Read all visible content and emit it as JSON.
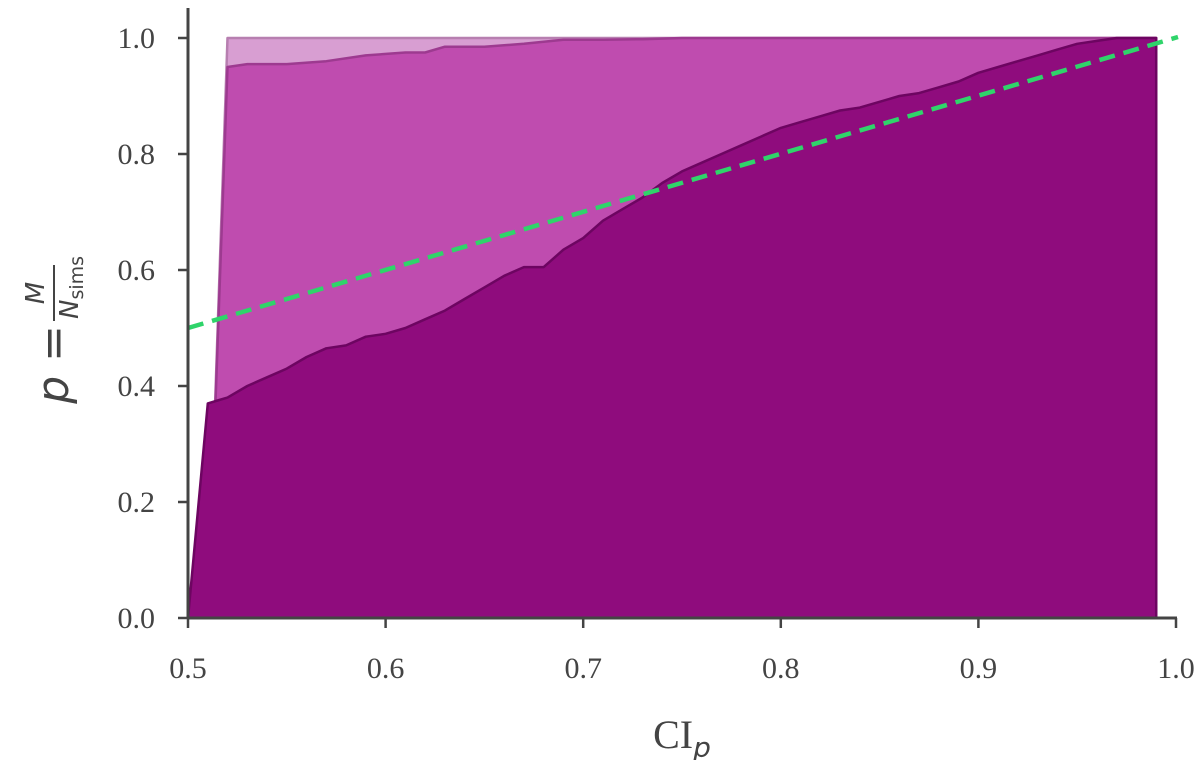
{
  "chart_data": {
    "type": "area",
    "xlabel_main": "CI",
    "xlabel_sub": "p",
    "ylabel_lhs": "p = ",
    "ylabel_num": "M",
    "ylabel_den_main": "N",
    "ylabel_den_sub": "sims",
    "xlim": [
      0.5,
      1.0
    ],
    "ylim": [
      0.0,
      1.0
    ],
    "x_ticks": [
      "0.5",
      "0.6",
      "0.7",
      "0.8",
      "0.9",
      "1.0"
    ],
    "y_ticks": [
      "0.0",
      "0.2",
      "0.4",
      "0.6",
      "0.8",
      "1.0"
    ],
    "grid": false,
    "colors": {
      "series_light": "#d89ed2",
      "series_medium": "#bf4caf",
      "series_dark": "#8f0c7d",
      "reference_line": "#2fd46a",
      "axis": "#444444"
    },
    "series": [
      {
        "x": [
          0.51,
          0.52,
          0.99
        ],
        "y": [
          0.0,
          1.0,
          1.0
        ]
      },
      {
        "x": [
          0.51,
          0.52,
          0.53,
          0.55,
          0.57,
          0.59,
          0.61,
          0.62,
          0.63,
          0.65,
          0.67,
          0.69,
          0.71,
          0.73,
          0.75,
          0.77,
          0.99
        ],
        "y": [
          0.0,
          0.95,
          0.955,
          0.955,
          0.96,
          0.97,
          0.975,
          0.975,
          0.985,
          0.985,
          0.99,
          0.997,
          0.997,
          0.998,
          1.0,
          1.0,
          1.0
        ]
      },
      {
        "x": [
          0.5,
          0.51,
          0.515,
          0.52,
          0.53,
          0.54,
          0.55,
          0.56,
          0.57,
          0.58,
          0.59,
          0.6,
          0.61,
          0.62,
          0.63,
          0.64,
          0.65,
          0.66,
          0.67,
          0.68,
          0.69,
          0.7,
          0.71,
          0.72,
          0.73,
          0.74,
          0.75,
          0.76,
          0.77,
          0.78,
          0.79,
          0.8,
          0.81,
          0.82,
          0.83,
          0.84,
          0.85,
          0.86,
          0.87,
          0.88,
          0.89,
          0.9,
          0.91,
          0.92,
          0.93,
          0.94,
          0.95,
          0.96,
          0.97,
          0.98,
          0.99
        ],
        "y": [
          0.0,
          0.37,
          0.375,
          0.38,
          0.4,
          0.415,
          0.43,
          0.45,
          0.465,
          0.47,
          0.485,
          0.49,
          0.5,
          0.515,
          0.53,
          0.55,
          0.57,
          0.59,
          0.605,
          0.605,
          0.635,
          0.655,
          0.685,
          0.705,
          0.725,
          0.75,
          0.77,
          0.785,
          0.8,
          0.815,
          0.83,
          0.845,
          0.855,
          0.865,
          0.875,
          0.88,
          0.89,
          0.9,
          0.905,
          0.915,
          0.925,
          0.94,
          0.95,
          0.96,
          0.97,
          0.98,
          0.99,
          0.995,
          1.0,
          1.0,
          1.0
        ]
      },
      {
        "x": [
          0.5,
          1.0
        ],
        "y": [
          0.5,
          1.0
        ],
        "style": "dashed"
      }
    ]
  }
}
